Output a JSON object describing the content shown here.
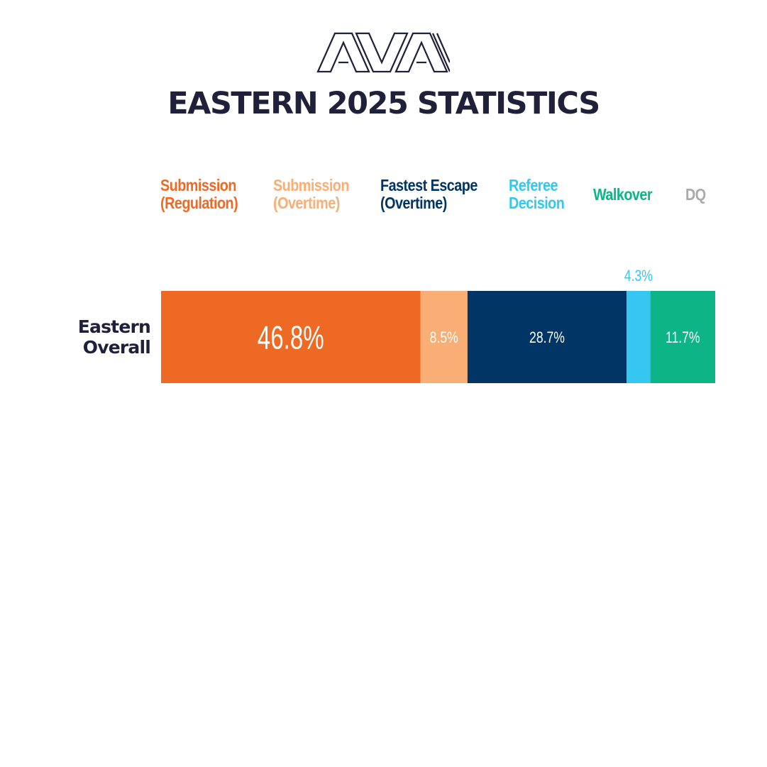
{
  "logo_text": "AVA",
  "title": "EASTERN 2025 STATISTICS",
  "colors": {
    "submission_regulation": "#ee6a24",
    "submission_overtime": "#f8ae75",
    "fastest_escape_overtime": "#013565",
    "referee_decision": "#35c7f2",
    "walkover": "#0db486",
    "dq": "#aaaaaa",
    "title": "#1f2039"
  },
  "legend": [
    {
      "label": "Submission\n(Regulation)",
      "color": "#ee6a24"
    },
    {
      "label": "Submission\n(Overtime)",
      "color": "#f8ae75"
    },
    {
      "label": "Fastest Escape\n(Overtime)",
      "color": "#013565"
    },
    {
      "label": "Referee\nDecision",
      "color": "#35c7f2"
    },
    {
      "label": "Walkover",
      "color": "#0db486"
    },
    {
      "label": "DQ",
      "color": "#aaaaaa"
    }
  ],
  "chart_data": {
    "type": "bar",
    "orientation": "horizontal",
    "stacked": true,
    "categories": [
      "Eastern\nOverall"
    ],
    "series": [
      {
        "name": "Submission (Regulation)",
        "values": [
          46.8
        ],
        "label": "46.8%",
        "color": "#ee6a24"
      },
      {
        "name": "Submission (Overtime)",
        "values": [
          8.5
        ],
        "label": "8.5%",
        "color": "#f8ae75"
      },
      {
        "name": "Fastest Escape (Overtime)",
        "values": [
          28.7
        ],
        "label": "28.7%",
        "color": "#013565"
      },
      {
        "name": "Referee Decision",
        "values": [
          4.3
        ],
        "label": "4.3%",
        "color": "#35c7f2"
      },
      {
        "name": "Walkover",
        "values": [
          11.7
        ],
        "label": "11.7%",
        "color": "#0db486"
      },
      {
        "name": "DQ",
        "values": [
          0
        ],
        "label": "",
        "color": "#aaaaaa"
      }
    ],
    "xlim": [
      0,
      100
    ],
    "legend_position": "top"
  }
}
